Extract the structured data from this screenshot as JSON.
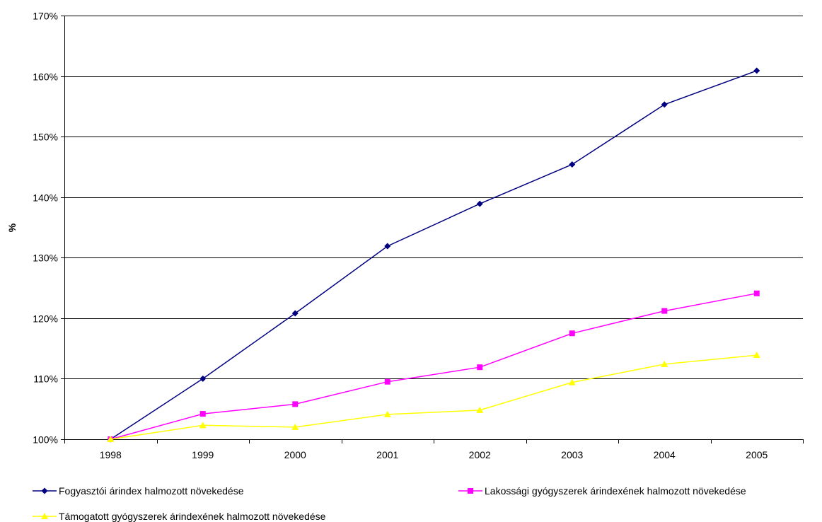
{
  "chart_data": {
    "type": "line",
    "title": "",
    "xlabel": "",
    "ylabel": "%",
    "categories": [
      "1998",
      "1999",
      "2000",
      "2001",
      "2002",
      "2003",
      "2004",
      "2005"
    ],
    "ylim": [
      100,
      170
    ],
    "yticks": [
      100,
      110,
      120,
      130,
      140,
      150,
      160,
      170
    ],
    "ytick_labels": [
      "100%",
      "110%",
      "120%",
      "130%",
      "140%",
      "150%",
      "160%",
      "170%"
    ],
    "grid": "horizontal",
    "legend_position": "bottom",
    "series": [
      {
        "name": "Fogyasztói árindex halmozott növekedése",
        "color": "#000080",
        "marker": "diamond",
        "values": [
          100,
          110,
          120.8,
          131.9,
          138.9,
          145.4,
          155.3,
          160.9
        ]
      },
      {
        "name": "Lakossági gyógyszerek árindexének halmozott növekedése",
        "color": "#FF00FF",
        "marker": "square",
        "values": [
          100,
          104.2,
          105.8,
          109.5,
          111.9,
          117.5,
          121.2,
          124.1
        ]
      },
      {
        "name": "Támogatott gyógyszerek árindexének halmozott növekedése",
        "color": "#FFFF00",
        "marker": "triangle",
        "values": [
          100,
          102.3,
          102.0,
          104.1,
          104.8,
          109.4,
          112.4,
          113.9
        ]
      }
    ]
  }
}
